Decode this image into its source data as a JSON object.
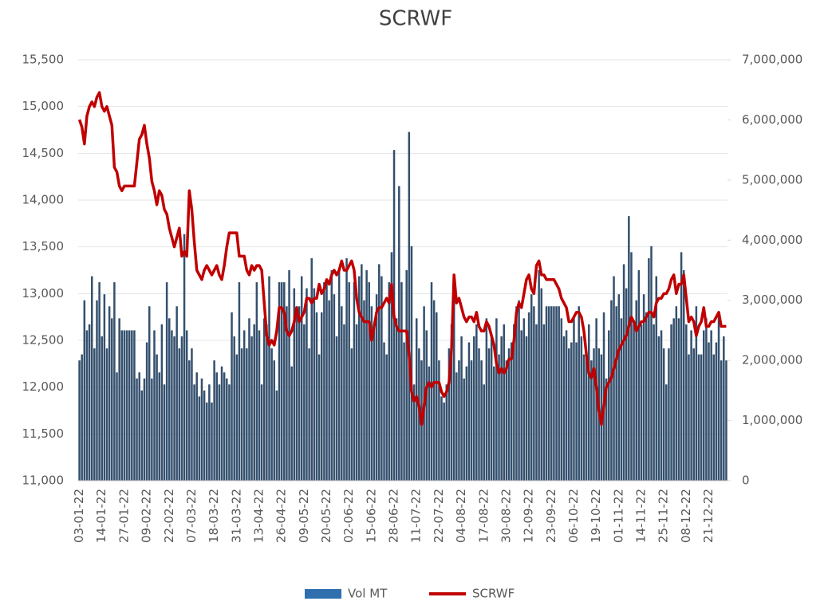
{
  "chart_data": {
    "type": "bar-line",
    "title": "SCRWF",
    "categories": [
      "03-01-22",
      null,
      null,
      null,
      null,
      null,
      null,
      null,
      null,
      "14-01-22",
      null,
      null,
      null,
      null,
      null,
      null,
      null,
      null,
      "27-01-22",
      null,
      null,
      null,
      null,
      null,
      null,
      null,
      null,
      "09-02-22",
      null,
      null,
      null,
      null,
      null,
      null,
      null,
      null,
      "22-02-22",
      null,
      null,
      null,
      null,
      null,
      null,
      null,
      null,
      "07-03-22",
      null,
      null,
      null,
      null,
      null,
      null,
      null,
      null,
      "18-03-22",
      null,
      null,
      null,
      null,
      null,
      null,
      null,
      null,
      "31-03-22",
      null,
      null,
      null,
      null,
      null,
      null,
      null,
      null,
      "13-04-22",
      null,
      null,
      null,
      null,
      null,
      null,
      null,
      null,
      "26-04-22",
      null,
      null,
      null,
      null,
      null,
      null,
      null,
      null,
      "09-05-22",
      null,
      null,
      null,
      null,
      null,
      null,
      null,
      null,
      "20-05-22",
      null,
      null,
      null,
      null,
      null,
      null,
      null,
      null,
      "02-06-22",
      null,
      null,
      null,
      null,
      null,
      null,
      null,
      null,
      "15-06-22",
      null,
      null,
      null,
      null,
      null,
      null,
      null,
      null,
      "28-06-22",
      null,
      null,
      null,
      null,
      null,
      null,
      null,
      null,
      "11-07-22",
      null,
      null,
      null,
      null,
      null,
      null,
      null,
      null,
      "22-07-22",
      null,
      null,
      null,
      null,
      null,
      null,
      null,
      null,
      "04-08-22",
      null,
      null,
      null,
      null,
      null,
      null,
      null,
      null,
      "17-08-22",
      null,
      null,
      null,
      null,
      null,
      null,
      null,
      null,
      "30-08-22",
      null,
      null,
      null,
      null,
      null,
      null,
      null,
      null,
      "12-09-22",
      null,
      null,
      null,
      null,
      null,
      null,
      null,
      null,
      "23-09-22",
      null,
      null,
      null,
      null,
      null,
      null,
      null,
      null,
      "06-10-22",
      null,
      null,
      null,
      null,
      null,
      null,
      null,
      null,
      "19-10-22",
      null,
      null,
      null,
      null,
      null,
      null,
      null,
      null,
      "01-11-22",
      null,
      null,
      null,
      null,
      null,
      null,
      null,
      null,
      "14-11-22",
      null,
      null,
      null,
      null,
      null,
      null,
      null,
      null,
      "25-11-22",
      null,
      null,
      null,
      null,
      null,
      null,
      null,
      null,
      "08-12-22",
      null,
      null,
      null,
      null,
      null,
      null,
      null,
      null,
      "21-12-22",
      null,
      null,
      null,
      null,
      null,
      null,
      null
    ],
    "series": [
      {
        "name": "Vol MT",
        "type": "bar",
        "axis": "y2",
        "color": "#34506e",
        "values": [
          2000000,
          2100000,
          3000000,
          2500000,
          2600000,
          3400000,
          2200000,
          3000000,
          3300000,
          2400000,
          3100000,
          2200000,
          2900000,
          2700000,
          3300000,
          1800000,
          2700000,
          2500000,
          2500000,
          2500000,
          2500000,
          2500000,
          2500000,
          1700000,
          1800000,
          1500000,
          1700000,
          2300000,
          2900000,
          1700000,
          2500000,
          2100000,
          1800000,
          2600000,
          1600000,
          3300000,
          2700000,
          2500000,
          2400000,
          2900000,
          2200000,
          2400000,
          4100000,
          2500000,
          2000000,
          2200000,
          1600000,
          1800000,
          1400000,
          1700000,
          1500000,
          1300000,
          1600000,
          1300000,
          2000000,
          1800000,
          1600000,
          1900000,
          1800000,
          1700000,
          1600000,
          2800000,
          2400000,
          2100000,
          3300000,
          2200000,
          2500000,
          2200000,
          2700000,
          2400000,
          2600000,
          3300000,
          2500000,
          1600000,
          2700000,
          2600000,
          3400000,
          2200000,
          2000000,
          1500000,
          3300000,
          3300000,
          3300000,
          2900000,
          3500000,
          1900000,
          3200000,
          2900000,
          2900000,
          3400000,
          2600000,
          3200000,
          2200000,
          3700000,
          3200000,
          2800000,
          2100000,
          2800000,
          3300000,
          3300000,
          3000000,
          3500000,
          3100000,
          2400000,
          3500000,
          2900000,
          2600000,
          3700000,
          3300000,
          2200000,
          3300000,
          2600000,
          3400000,
          3600000,
          3000000,
          3500000,
          3300000,
          2900000,
          2600000,
          3100000,
          3600000,
          3400000,
          2300000,
          2100000,
          3300000,
          3800000,
          5500000,
          2700000,
          4900000,
          3300000,
          2300000,
          3500000,
          5800000,
          3900000,
          1600000,
          2700000,
          2200000,
          2000000,
          2900000,
          2500000,
          1900000,
          3300000,
          3000000,
          2800000,
          2000000,
          1400000,
          1300000,
          1600000,
          2200000,
          2600000,
          3100000,
          1800000,
          2000000,
          2400000,
          1700000,
          1900000,
          2300000,
          2000000,
          2400000,
          2600000,
          2200000,
          2000000,
          1600000,
          2700000,
          2200000,
          2400000,
          1900000,
          2700000,
          2100000,
          2400000,
          2600000,
          2000000,
          2200000,
          2300000,
          2600000,
          2900000,
          3000000,
          2500000,
          2700000,
          2400000,
          2800000,
          3100000,
          2900000,
          2600000,
          3500000,
          3200000,
          2600000,
          2900000,
          2900000,
          2900000,
          2900000,
          2900000,
          2900000,
          2700000,
          2400000,
          2500000,
          2200000,
          2300000,
          2700000,
          2300000,
          2900000,
          2400000,
          2100000,
          2100000,
          2600000,
          2000000,
          2200000,
          2700000,
          2200000,
          2100000,
          2800000,
          1700000,
          2500000,
          3000000,
          3400000,
          2900000,
          3100000,
          2700000,
          3600000,
          3200000,
          4400000,
          3800000,
          2600000,
          3000000,
          3500000,
          2600000,
          3100000,
          2800000,
          3700000,
          3900000,
          2600000,
          3400000,
          2400000,
          2500000,
          2200000,
          1600000,
          2200000,
          2600000,
          2700000,
          2900000,
          2700000,
          3800000,
          3500000,
          2600000,
          2100000,
          2500000,
          2200000,
          2900000,
          2100000,
          2100000,
          2500000,
          2700000,
          2300000,
          2500000,
          2100000,
          2300000,
          2800000,
          2000000,
          2400000,
          2000000
        ]
      },
      {
        "name": "SCRWF",
        "type": "line",
        "axis": "y",
        "color": "#c00000",
        "values": [
          14860,
          14780,
          14600,
          14900,
          15000,
          15050,
          15000,
          15100,
          15150,
          15000,
          14950,
          15000,
          14900,
          14800,
          14350,
          14300,
          14150,
          14100,
          14150,
          14150,
          14150,
          14150,
          14150,
          14400,
          14650,
          14700,
          14800,
          14600,
          14450,
          14200,
          14100,
          13950,
          14100,
          14050,
          13900,
          13850,
          13700,
          13600,
          13500,
          13600,
          13700,
          13400,
          13450,
          13400,
          14100,
          13900,
          13550,
          13250,
          13200,
          13150,
          13250,
          13300,
          13250,
          13200,
          13250,
          13300,
          13200,
          13150,
          13300,
          13500,
          13650,
          13650,
          13650,
          13650,
          13400,
          13400,
          13400,
          13250,
          13200,
          13300,
          13250,
          13300,
          13300,
          13250,
          12900,
          12550,
          12450,
          12500,
          12450,
          12600,
          12850,
          12850,
          12800,
          12600,
          12550,
          12600,
          12700,
          12850,
          12700,
          12750,
          12800,
          12950,
          12950,
          12900,
          12950,
          12950,
          13100,
          13000,
          13050,
          13150,
          13100,
          13200,
          13250,
          13200,
          13250,
          13350,
          13250,
          13250,
          13300,
          13350,
          13250,
          12950,
          12800,
          12750,
          12700,
          12700,
          12700,
          12500,
          12650,
          12800,
          12850,
          12850,
          12900,
          12950,
          12900,
          13100,
          12750,
          12650,
          12600,
          12600,
          12600,
          12600,
          12350,
          11950,
          11850,
          11900,
          11800,
          11600,
          11800,
          12000,
          12050,
          12000,
          12050,
          12050,
          12050,
          11950,
          11900,
          11950,
          12050,
          12400,
          13200,
          12900,
          12950,
          12850,
          12750,
          12700,
          12750,
          12750,
          12700,
          12800,
          12650,
          12600,
          12600,
          12700,
          12650,
          12550,
          12450,
          12250,
          12150,
          12200,
          12150,
          12200,
          12300,
          12300,
          12500,
          12800,
          12900,
          12850,
          13000,
          13150,
          13200,
          13050,
          13000,
          13300,
          13350,
          13200,
          13200,
          13150,
          13150,
          13150,
          13150,
          13100,
          13050,
          12950,
          12900,
          12850,
          12700,
          12700,
          12750,
          12800,
          12800,
          12750,
          12600,
          12350,
          12150,
          12100,
          12200,
          12000,
          11750,
          11600,
          11800,
          12000,
          12050,
          12100,
          12200,
          12300,
          12400,
          12450,
          12500,
          12550,
          12650,
          12750,
          12700,
          12600,
          12650,
          12700,
          12700,
          12750,
          12800,
          12800,
          12750,
          12900,
          12950,
          12950,
          13000,
          13000,
          13050,
          13150,
          13200,
          13000,
          13100,
          13100,
          13200,
          12950,
          12700,
          12750,
          12700,
          12550,
          12650,
          12700,
          12850,
          12650,
          12650,
          12700,
          12700,
          12750,
          12800,
          12650,
          12650,
          12650
        ]
      }
    ],
    "ylim": [
      11000,
      15500
    ],
    "yticks": [
      {
        "value": 11000,
        "label": "11,000"
      },
      {
        "value": 11500,
        "label": "11,500"
      },
      {
        "value": 12000,
        "label": "12,000"
      },
      {
        "value": 12500,
        "label": "12,500"
      },
      {
        "value": 13000,
        "label": "13,000"
      },
      {
        "value": 13500,
        "label": "13,500"
      },
      {
        "value": 14000,
        "label": "14,000"
      },
      {
        "value": 14500,
        "label": "14,500"
      },
      {
        "value": 15000,
        "label": "15,000"
      },
      {
        "value": 15500,
        "label": "15,500"
      }
    ],
    "y2lim": [
      0,
      7000000
    ],
    "y2ticks": [
      0,
      {
        "value": 1000000,
        "label": "1,000,000"
      },
      {
        "value": 2000000,
        "label": "2,000,000"
      },
      {
        "value": 3000000,
        "label": "3,000,000"
      },
      {
        "value": 4000000,
        "label": "4,000,000"
      },
      {
        "value": 5000000,
        "label": "5,000,000"
      },
      {
        "value": 6000000,
        "label": "6,000,000"
      },
      {
        "value": 7000000,
        "label": "7,000,000"
      }
    ],
    "grid": true,
    "legend": "bottom"
  }
}
